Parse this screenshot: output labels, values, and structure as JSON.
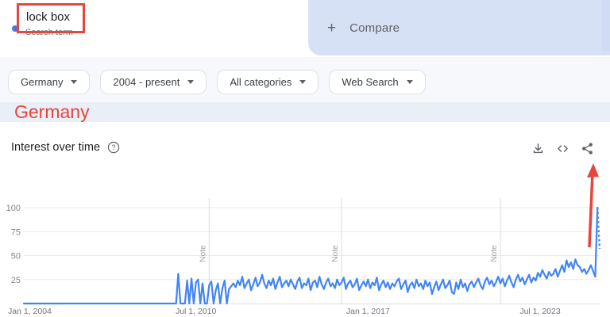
{
  "search_card": {
    "term": "lock box",
    "type_label": "Search term"
  },
  "compare": {
    "plus": "+",
    "label": "Compare"
  },
  "filters": [
    {
      "label": "Germany"
    },
    {
      "label": "2004 - present"
    },
    {
      "label": "All categories"
    },
    {
      "label": "Web Search"
    }
  ],
  "region_heading": "Germany",
  "chart_header": {
    "title": "Interest over time"
  },
  "icons": {
    "help": "question-circle-icon",
    "download": "download-icon",
    "embed": "embed-code-icon",
    "share": "share-icon"
  },
  "annotation_color": "#e5463d",
  "chart_data": {
    "type": "line",
    "title": "Interest over time",
    "series_name": "lock box",
    "region": "Germany",
    "time_range": "2004 - present",
    "frequency": "monthly",
    "x_start": "2004-01",
    "x_end": "2025-10",
    "ylim": [
      0,
      100
    ],
    "y_ticks": [
      25,
      50,
      75,
      100
    ],
    "grid": true,
    "line_color": "#4285f4",
    "note_label": "Note",
    "notes": [
      {
        "index": 84,
        "date": "2011-01"
      },
      {
        "index": 144,
        "date": "2016-01"
      },
      {
        "index": 216,
        "date": "2022-01"
      }
    ],
    "x_ticks": [
      {
        "label": "Jan 1, 2004",
        "index": 0
      },
      {
        "label": "Jul 1, 2010",
        "index": 78
      },
      {
        "label": "Jan 1, 2017",
        "index": 156
      },
      {
        "label": "Jul 1, 2023",
        "index": 234
      }
    ],
    "partial_last_point": true,
    "values": [
      0,
      0,
      0,
      0,
      0,
      0,
      0,
      0,
      0,
      0,
      0,
      0,
      0,
      0,
      0,
      0,
      0,
      0,
      0,
      0,
      0,
      0,
      0,
      0,
      0,
      0,
      0,
      0,
      0,
      0,
      0,
      0,
      0,
      0,
      0,
      0,
      0,
      0,
      0,
      0,
      0,
      0,
      0,
      0,
      0,
      0,
      0,
      0,
      0,
      0,
      0,
      0,
      0,
      0,
      0,
      0,
      0,
      0,
      0,
      0,
      0,
      0,
      0,
      0,
      0,
      0,
      0,
      0,
      0,
      0,
      31,
      0,
      0,
      0,
      24,
      0,
      26,
      0,
      22,
      25,
      0,
      21,
      0,
      0,
      19,
      23,
      0,
      14,
      21,
      0,
      16,
      24,
      0,
      15,
      18,
      21,
      17,
      24,
      19,
      28,
      16,
      21,
      25,
      14,
      20,
      27,
      18,
      22,
      30,
      21,
      16,
      24,
      19,
      26,
      15,
      22,
      28,
      17,
      21,
      24,
      18,
      25,
      20,
      15,
      23,
      27,
      16,
      21,
      19,
      26,
      14,
      22,
      24,
      17,
      28,
      20,
      15,
      22,
      26,
      18,
      21,
      16,
      25,
      19,
      22,
      27,
      15,
      21,
      24,
      17,
      20,
      26,
      14,
      19,
      23,
      18,
      25,
      16,
      22,
      19,
      27,
      14,
      20,
      24,
      17,
      22,
      15,
      21,
      18,
      23,
      26,
      15,
      20,
      24,
      12,
      19,
      22,
      16,
      25,
      18,
      21,
      15,
      24,
      18,
      22,
      10,
      17,
      23,
      14,
      20,
      25,
      16,
      19,
      24,
      12,
      10,
      22,
      15,
      25,
      17,
      21,
      13,
      20,
      23,
      17,
      22,
      26,
      19,
      15,
      23,
      27,
      20,
      24,
      18,
      22,
      28,
      21,
      26,
      18,
      24,
      29,
      22,
      17,
      25,
      30,
      23,
      27,
      20,
      25,
      30,
      22,
      27,
      24,
      32,
      28,
      35,
      30,
      26,
      33,
      29,
      31,
      36,
      28,
      34,
      40,
      33,
      45,
      38,
      43,
      36,
      46,
      40,
      38,
      33,
      36,
      31,
      35,
      40,
      34,
      28,
      100,
      57
    ]
  }
}
